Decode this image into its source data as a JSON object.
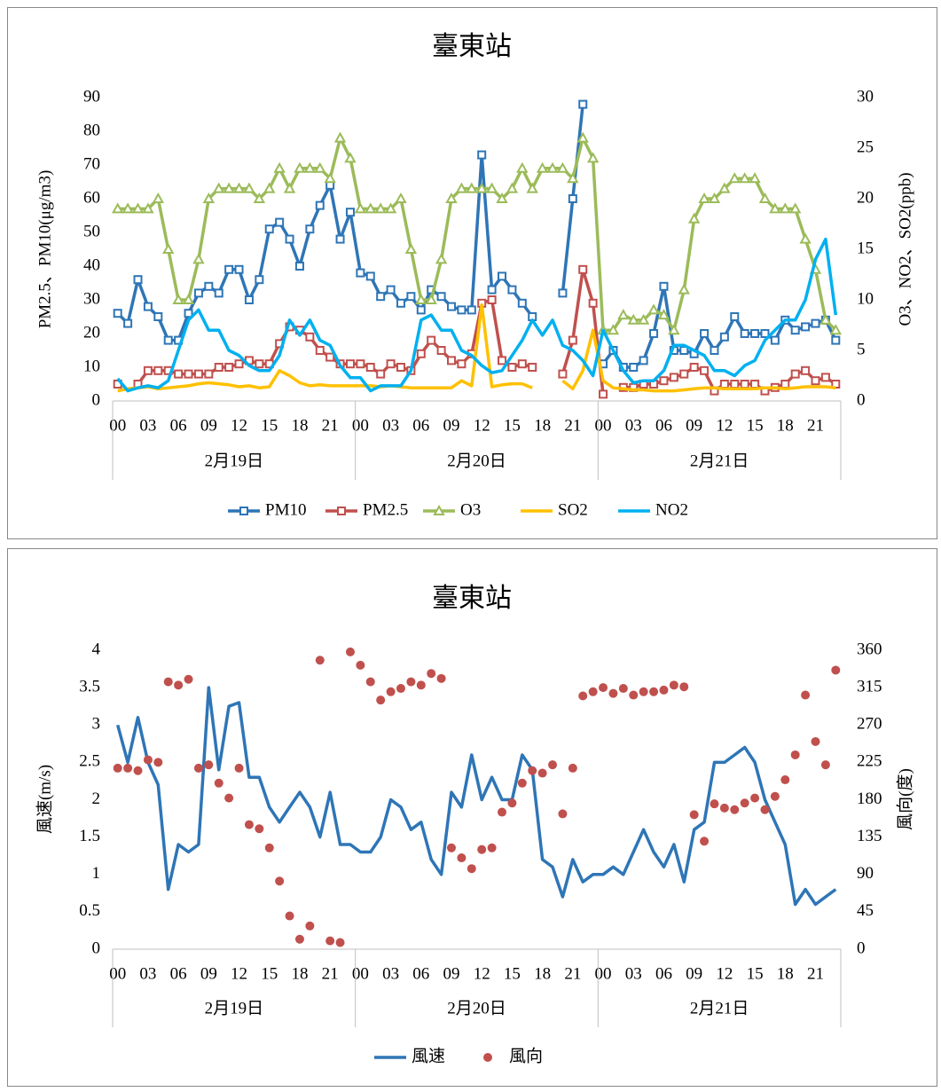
{
  "chart_data": [
    {
      "type": "line",
      "title": "臺東站",
      "y_title": "PM2.5、PM10(μg/m3)",
      "y2_title": "O3、NO2、SO2(ppb)",
      "categories": [
        "00",
        null,
        null,
        "03",
        null,
        null,
        "06",
        null,
        null,
        "09",
        null,
        null,
        "12",
        null,
        null,
        "15",
        null,
        null,
        "18",
        null,
        null,
        "21",
        null,
        null,
        "00",
        null,
        null,
        "03",
        null,
        null,
        "06",
        null,
        null,
        "09",
        null,
        null,
        "12",
        null,
        null,
        "15",
        null,
        null,
        "18",
        null,
        null,
        "21",
        null,
        null,
        "00",
        null,
        null,
        "03",
        null,
        null,
        "06",
        null,
        null,
        "09",
        null,
        null,
        "12",
        null,
        null,
        "15",
        null,
        null,
        "18",
        null,
        null,
        "21",
        null,
        null
      ],
      "x_groups": [
        "2月19日",
        "2月20日",
        "2月21日"
      ],
      "ylim": [
        0,
        90
      ],
      "yticks": [
        0,
        10,
        20,
        30,
        40,
        50,
        60,
        70,
        80,
        90
      ],
      "y2lim": [
        0,
        30
      ],
      "y2ticks": [
        0,
        5,
        10,
        15,
        20,
        25,
        30
      ],
      "grid": false,
      "series": [
        {
          "name": "PM10",
          "color": "#2e75b6",
          "marker": "square",
          "values": [
            26,
            23,
            36,
            28,
            25,
            18,
            18,
            26,
            32,
            34,
            32,
            39,
            39,
            30,
            36,
            51,
            53,
            48,
            40,
            51,
            58,
            64,
            48,
            56,
            38,
            37,
            31,
            33,
            29,
            31,
            27,
            33,
            31,
            28,
            27,
            27,
            73,
            33,
            37,
            33,
            29,
            25,
            null,
            null,
            32,
            60,
            88,
            null,
            11,
            15,
            10,
            10,
            12,
            20,
            34,
            15,
            15,
            14,
            20,
            15,
            19,
            25,
            20,
            20,
            20,
            18,
            24,
            21,
            22,
            23,
            24,
            18
          ]
        },
        {
          "name": "PM2.5",
          "color": "#c0504d",
          "marker": "square",
          "values": [
            5,
            null,
            5,
            9,
            9,
            9,
            8,
            8,
            8,
            8,
            10,
            10,
            11,
            12,
            11,
            11,
            17,
            22,
            21,
            19,
            15,
            13,
            11,
            11,
            11,
            10,
            8,
            11,
            10,
            9,
            14,
            18,
            15,
            12,
            11,
            14,
            29,
            30,
            12,
            10,
            11,
            10,
            null,
            null,
            8,
            18,
            39,
            29,
            2,
            null,
            4,
            4,
            5,
            5,
            6,
            7,
            8,
            10,
            9,
            3,
            5,
            5,
            5,
            5,
            3,
            4,
            5,
            8,
            9,
            6,
            7,
            5
          ]
        },
        {
          "name": "O3",
          "color": "#9bbb59",
          "marker": "triangle",
          "axis": "y2",
          "values": [
            19,
            19,
            19,
            19,
            20,
            15,
            10,
            10,
            14,
            20,
            21,
            21,
            21,
            21,
            20,
            21,
            23,
            21,
            23,
            23,
            23,
            22,
            26,
            24,
            19,
            19,
            19,
            19,
            20,
            15,
            10,
            10,
            14,
            20,
            21,
            21,
            21,
            21,
            20,
            21,
            23,
            21,
            23,
            23,
            23,
            22,
            26,
            24,
            7,
            7,
            8.5,
            8,
            8,
            9,
            8.5,
            7,
            11,
            18,
            20,
            20,
            21,
            22,
            22,
            22,
            20,
            19,
            19,
            19,
            16,
            13,
            8,
            7
          ]
        },
        {
          "name": "SO2",
          "color": "#ffc000",
          "marker": "none",
          "axis": "y2",
          "values": [
            1,
            1.2,
            1.3,
            1.4,
            1.2,
            1.3,
            1.4,
            1.5,
            1.7,
            1.8,
            1.7,
            1.6,
            1.4,
            1.5,
            1.3,
            1.4,
            3,
            2.5,
            1.8,
            1.5,
            1.6,
            1.5,
            1.5,
            1.5,
            1.5,
            1.5,
            1.4,
            1.5,
            1.4,
            1.3,
            1.3,
            1.3,
            1.3,
            1.3,
            2,
            1.5,
            9.5,
            1.4,
            1.6,
            1.7,
            1.7,
            1.3,
            null,
            null,
            2,
            1.2,
            3,
            7,
            2,
            1.3,
            1.2,
            1.1,
            1.1,
            1,
            1,
            1,
            1.1,
            1.2,
            1.3,
            1.3,
            1.2,
            1.2,
            1.2,
            1.2,
            1.3,
            1.3,
            1.2,
            1.3,
            1.4,
            1.4,
            1.4,
            1.3
          ]
        },
        {
          "name": "NO2",
          "color": "#00b0f0",
          "marker": "none",
          "axis": "y2",
          "values": [
            2.2,
            1,
            1.3,
            1.5,
            1.3,
            2,
            5,
            8,
            9,
            7,
            7,
            5,
            4.5,
            3.5,
            3,
            3,
            4.5,
            8,
            6.5,
            8,
            6,
            5.5,
            3.5,
            2.3,
            2.3,
            1,
            1.5,
            1.5,
            1.5,
            3,
            8,
            8.5,
            7,
            7,
            5,
            4.5,
            3.5,
            2.8,
            3,
            4.5,
            6,
            8,
            6.5,
            8,
            5.5,
            5,
            4,
            2.5,
            7,
            5,
            3,
            1.8,
            2,
            2,
            3,
            5.5,
            5.5,
            5,
            4.5,
            3,
            3,
            2.5,
            3.5,
            4,
            6,
            7,
            8,
            8,
            10,
            14,
            16,
            8.5
          ]
        }
      ]
    },
    {
      "type": "line",
      "title": "臺東站",
      "y_title": "風速(m/s)",
      "y2_title": "風向(度)",
      "categories": [
        "00",
        null,
        null,
        "03",
        null,
        null,
        "06",
        null,
        null,
        "09",
        null,
        null,
        "12",
        null,
        null,
        "15",
        null,
        null,
        "18",
        null,
        null,
        "21",
        null,
        null,
        "00",
        null,
        null,
        "03",
        null,
        null,
        "06",
        null,
        null,
        "09",
        null,
        null,
        "12",
        null,
        null,
        "15",
        null,
        null,
        "18",
        null,
        null,
        "21",
        null,
        null,
        "00",
        null,
        null,
        "03",
        null,
        null,
        "06",
        null,
        null,
        "09",
        null,
        null,
        "12",
        null,
        null,
        "15",
        null,
        null,
        "18",
        null,
        null,
        "21",
        null,
        null
      ],
      "x_groups": [
        "2月19日",
        "2月20日",
        "2月21日"
      ],
      "ylim": [
        0,
        4
      ],
      "yticks": [
        0,
        0.5,
        1,
        1.5,
        2,
        2.5,
        3,
        3.5,
        4
      ],
      "y2lim": [
        0,
        360
      ],
      "y2ticks": [
        0,
        45,
        90,
        135,
        180,
        225,
        270,
        315,
        360
      ],
      "grid": false,
      "series": [
        {
          "name": "風速",
          "color": "#2e75b6",
          "marker": "none",
          "values": [
            3,
            2.5,
            3.1,
            2.5,
            2.2,
            0.8,
            1.4,
            1.3,
            1.4,
            3.5,
            2.4,
            3.25,
            3.3,
            2.3,
            2.3,
            1.9,
            1.7,
            1.9,
            2.1,
            1.9,
            1.5,
            2.1,
            1.4,
            1.4,
            1.3,
            1.3,
            1.5,
            2,
            1.9,
            1.6,
            1.7,
            1.2,
            1,
            2.1,
            1.9,
            2.6,
            2,
            2.3,
            2,
            2,
            2.6,
            2.4,
            1.2,
            1.1,
            0.7,
            1.2,
            0.9,
            1,
            1,
            1.1,
            1,
            1.3,
            1.6,
            1.3,
            1.1,
            1.4,
            0.9,
            1.6,
            1.7,
            2.5,
            2.5,
            2.6,
            2.7,
            2.5,
            2,
            1.7,
            1.4,
            0.6,
            0.8,
            0.6,
            0.7,
            0.8
          ]
        },
        {
          "name": "風向",
          "color": "#c0504d",
          "type": "scatter",
          "marker": "circle",
          "axis": "y2",
          "values": [
            218,
            218,
            215,
            228,
            225,
            322,
            318,
            325,
            218,
            222,
            200,
            182,
            218,
            150,
            145,
            122,
            82,
            40,
            12,
            28,
            348,
            10,
            8,
            358,
            342,
            322,
            300,
            310,
            314,
            322,
            318,
            332,
            326,
            122,
            110,
            97,
            120,
            122,
            165,
            176,
            200,
            215,
            212,
            222,
            163,
            218,
            305,
            310,
            315,
            308,
            314,
            306,
            310,
            310,
            312,
            318,
            316,
            162,
            130,
            175,
            170,
            168,
            176,
            182,
            168,
            184,
            204,
            234,
            306,
            250,
            222,
            336
          ]
        }
      ]
    }
  ]
}
